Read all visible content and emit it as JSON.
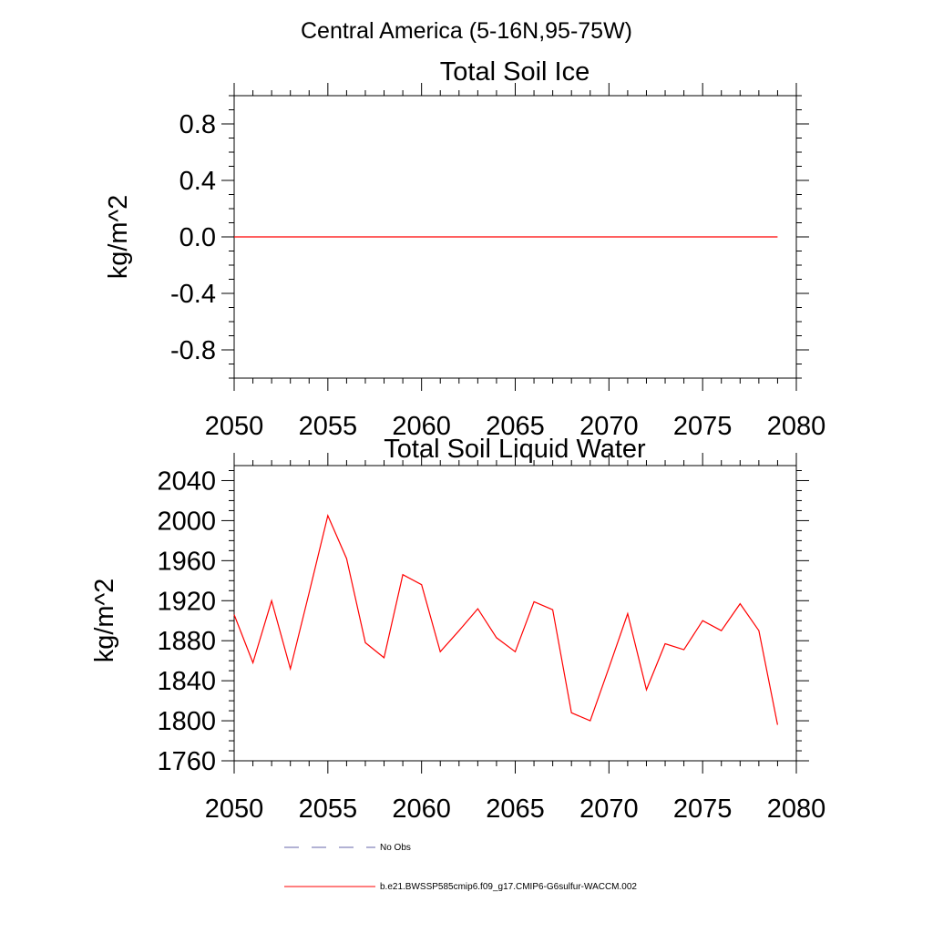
{
  "figure": {
    "title": "Central America (5-16N,95-75W)"
  },
  "chart_data": [
    {
      "type": "line",
      "title": "Total Soil Ice",
      "xlabel": "",
      "ylabel": "kg/m^2",
      "xlim": [
        2050,
        2080
      ],
      "ylim": [
        -1.0,
        1.0
      ],
      "x_ticks": [
        "2050",
        "2055",
        "2060",
        "2065",
        "2070",
        "2075",
        "2080"
      ],
      "y_ticks": [
        "-0.8",
        "-0.4",
        "0.0",
        "0.4",
        "0.8"
      ],
      "grid": false,
      "series": [
        {
          "name": "b.e21.BWSSP585cmip6.f09_g17.CMIP6-G6sulfur-WACCM.002",
          "color": "#ff0000",
          "x": [
            2050,
            2051,
            2052,
            2053,
            2054,
            2055,
            2056,
            2057,
            2058,
            2059,
            2060,
            2061,
            2062,
            2063,
            2064,
            2065,
            2066,
            2067,
            2068,
            2069,
            2070,
            2071,
            2072,
            2073,
            2074,
            2075,
            2076,
            2077,
            2078,
            2079
          ],
          "y": [
            0,
            0,
            0,
            0,
            0,
            0,
            0,
            0,
            0,
            0,
            0,
            0,
            0,
            0,
            0,
            0,
            0,
            0,
            0,
            0,
            0,
            0,
            0,
            0,
            0,
            0,
            0,
            0,
            0,
            0
          ]
        }
      ]
    },
    {
      "type": "line",
      "title": "Total Soil Liquid Water",
      "xlabel": "",
      "ylabel": "kg/m^2",
      "xlim": [
        2050,
        2080
      ],
      "ylim": [
        1760,
        2055
      ],
      "x_ticks": [
        "2050",
        "2055",
        "2060",
        "2065",
        "2070",
        "2075",
        "2080"
      ],
      "y_ticks": [
        "1760",
        "1800",
        "1840",
        "1880",
        "1920",
        "1960",
        "2000",
        "2040"
      ],
      "grid": false,
      "series": [
        {
          "name": "b.e21.BWSSP585cmip6.f09_g17.CMIP6-G6sulfur-WACCM.002",
          "color": "#ff0000",
          "x": [
            2050,
            2051,
            2052,
            2053,
            2054,
            2055,
            2056,
            2057,
            2058,
            2059,
            2060,
            2061,
            2062,
            2063,
            2064,
            2065,
            2066,
            2067,
            2068,
            2069,
            2070,
            2071,
            2072,
            2073,
            2074,
            2075,
            2076,
            2077,
            2078,
            2079
          ],
          "y": [
            1906,
            1858,
            1920,
            1852,
            1928,
            2005,
            1962,
            1878,
            1863,
            1946,
            1936,
            1869,
            1890,
            1912,
            1883,
            1869,
            1919,
            1911,
            1808,
            1800,
            1853,
            1907,
            1831,
            1877,
            1871,
            1900,
            1890,
            1917,
            1890,
            1796
          ]
        }
      ]
    }
  ],
  "legend": {
    "placement": "bottom",
    "items": [
      {
        "label": "No Obs",
        "color": "#6666aa",
        "style": "dashed"
      },
      {
        "label": "b.e21.BWSSP585cmip6.f09_g17.CMIP6-G6sulfur-WACCM.002",
        "color": "#ff0000",
        "style": "solid"
      }
    ]
  }
}
